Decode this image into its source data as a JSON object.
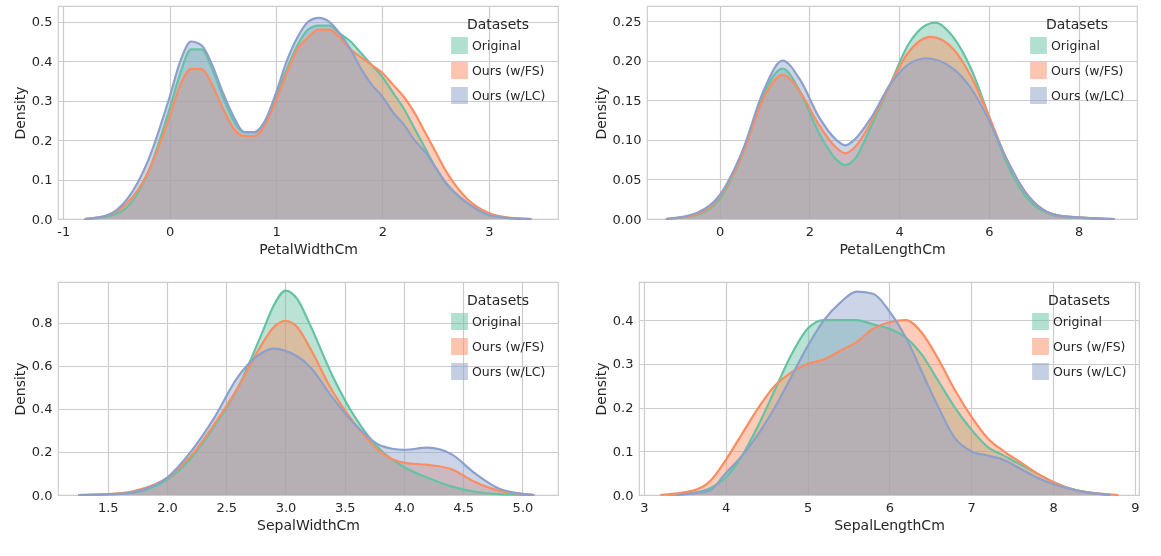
{
  "chart_data": [
    {
      "type": "area",
      "xlabel": "PetalWidthCm",
      "ylabel": "Density",
      "legend_title": "Datasets",
      "legend": "top right",
      "grid": true,
      "xlim": [
        -1.05,
        3.65
      ],
      "ylim": [
        0,
        0.54
      ],
      "xticks": [
        -1,
        0,
        1,
        2,
        3
      ],
      "yticks": [
        {
          "value": 0,
          "label": "0.0"
        },
        {
          "value": 0.1,
          "label": "0.1"
        },
        {
          "value": 0.2,
          "label": "0.2"
        },
        {
          "value": 0.3,
          "label": "0.3"
        },
        {
          "value": 0.4,
          "label": "0.4"
        },
        {
          "value": 0.5,
          "label": "0.5"
        }
      ],
      "series": [
        {
          "name": "Original",
          "color": "#66c2a5",
          "x": [
            -0.8,
            -0.6,
            -0.4,
            -0.2,
            0,
            0.1,
            0.2,
            0.3,
            0.4,
            0.5,
            0.6,
            0.7,
            0.8,
            0.9,
            1.0,
            1.1,
            1.2,
            1.3,
            1.4,
            1.5,
            1.6,
            1.7,
            1.8,
            1.9,
            2.0,
            2.1,
            2.2,
            2.3,
            2.4,
            2.5,
            2.6,
            2.8,
            3.0,
            3.2,
            3.4
          ],
          "values": [
            0,
            0.005,
            0.03,
            0.12,
            0.28,
            0.37,
            0.43,
            0.43,
            0.38,
            0.31,
            0.25,
            0.22,
            0.22,
            0.25,
            0.31,
            0.38,
            0.44,
            0.48,
            0.49,
            0.49,
            0.47,
            0.45,
            0.42,
            0.39,
            0.36,
            0.32,
            0.28,
            0.23,
            0.18,
            0.13,
            0.09,
            0.04,
            0.01,
            0.002,
            0
          ]
        },
        {
          "name": "Ours (w/FS)",
          "color": "#fc8d62",
          "x": [
            -0.8,
            -0.6,
            -0.4,
            -0.2,
            0,
            0.1,
            0.2,
            0.3,
            0.4,
            0.5,
            0.6,
            0.7,
            0.8,
            0.9,
            1.0,
            1.1,
            1.2,
            1.3,
            1.4,
            1.5,
            1.6,
            1.7,
            1.8,
            1.9,
            2.0,
            2.1,
            2.2,
            2.3,
            2.4,
            2.5,
            2.6,
            2.8,
            3.0,
            3.2,
            3.4
          ],
          "values": [
            0,
            0.008,
            0.04,
            0.12,
            0.26,
            0.34,
            0.38,
            0.38,
            0.34,
            0.28,
            0.23,
            0.21,
            0.21,
            0.24,
            0.3,
            0.37,
            0.43,
            0.46,
            0.48,
            0.48,
            0.46,
            0.43,
            0.41,
            0.39,
            0.37,
            0.34,
            0.31,
            0.27,
            0.22,
            0.17,
            0.12,
            0.05,
            0.015,
            0.003,
            0
          ]
        },
        {
          "name": "Ours (w/LC)",
          "color": "#8da0cb",
          "x": [
            -0.8,
            -0.6,
            -0.4,
            -0.2,
            0,
            0.1,
            0.2,
            0.3,
            0.4,
            0.5,
            0.6,
            0.7,
            0.8,
            0.9,
            1.0,
            1.1,
            1.2,
            1.3,
            1.4,
            1.5,
            1.6,
            1.7,
            1.8,
            1.9,
            2.0,
            2.1,
            2.2,
            2.3,
            2.4,
            2.5,
            2.6,
            2.8,
            3.0,
            3.2,
            3.4
          ],
          "values": [
            0,
            0.008,
            0.05,
            0.15,
            0.31,
            0.4,
            0.45,
            0.44,
            0.39,
            0.32,
            0.26,
            0.22,
            0.22,
            0.25,
            0.32,
            0.4,
            0.46,
            0.5,
            0.51,
            0.5,
            0.47,
            0.43,
            0.38,
            0.34,
            0.31,
            0.27,
            0.24,
            0.2,
            0.17,
            0.13,
            0.09,
            0.04,
            0.01,
            0.002,
            0
          ]
        }
      ]
    },
    {
      "type": "area",
      "xlabel": "PetalLengthCm",
      "ylabel": "Density",
      "legend_title": "Datasets",
      "legend": "top right",
      "grid": true,
      "xlim": [
        -1.62,
        9.3
      ],
      "ylim": [
        0,
        0.269
      ],
      "xticks": [
        0,
        2,
        4,
        6,
        8
      ],
      "yticks": [
        {
          "value": 0,
          "label": "0.00"
        },
        {
          "value": 0.05,
          "label": "0.05"
        },
        {
          "value": 0.1,
          "label": "0.10"
        },
        {
          "value": 0.15,
          "label": "0.15"
        },
        {
          "value": 0.2,
          "label": "0.20"
        },
        {
          "value": 0.25,
          "label": "0.25"
        }
      ],
      "series": [
        {
          "name": "Original",
          "color": "#66c2a5",
          "x": [
            -1.2,
            -0.5,
            0,
            0.5,
            1.0,
            1.4,
            1.8,
            2.2,
            2.6,
            2.8,
            3.0,
            3.4,
            3.8,
            4.2,
            4.6,
            4.8,
            5.2,
            5.6,
            6.0,
            6.4,
            6.8,
            7.2,
            7.6,
            8.8
          ],
          "values": [
            0,
            0.005,
            0.025,
            0.08,
            0.16,
            0.19,
            0.16,
            0.11,
            0.075,
            0.068,
            0.075,
            0.12,
            0.17,
            0.22,
            0.245,
            0.248,
            0.23,
            0.19,
            0.13,
            0.07,
            0.03,
            0.01,
            0.003,
            0
          ]
        },
        {
          "name": "Ours (w/FS)",
          "color": "#fc8d62",
          "x": [
            -1.2,
            -0.5,
            0,
            0.5,
            1.0,
            1.4,
            1.8,
            2.2,
            2.6,
            2.8,
            3.0,
            3.4,
            3.8,
            4.2,
            4.7,
            5.2,
            5.6,
            6.0,
            6.4,
            6.8,
            7.2,
            7.6,
            8.8
          ],
          "values": [
            0,
            0.006,
            0.028,
            0.08,
            0.155,
            0.182,
            0.16,
            0.12,
            0.09,
            0.083,
            0.09,
            0.125,
            0.17,
            0.21,
            0.23,
            0.215,
            0.18,
            0.13,
            0.075,
            0.035,
            0.012,
            0.004,
            0
          ]
        },
        {
          "name": "Ours (w/LC)",
          "color": "#8da0cb",
          "x": [
            -1.2,
            -0.5,
            0,
            0.5,
            1.0,
            1.4,
            1.8,
            2.2,
            2.6,
            2.8,
            3.0,
            3.4,
            3.8,
            4.2,
            4.6,
            5.2,
            5.6,
            6.0,
            6.4,
            6.8,
            7.2,
            7.6,
            8.8
          ],
          "values": [
            0,
            0.008,
            0.03,
            0.085,
            0.165,
            0.2,
            0.175,
            0.13,
            0.1,
            0.093,
            0.1,
            0.13,
            0.17,
            0.195,
            0.203,
            0.19,
            0.165,
            0.125,
            0.075,
            0.035,
            0.012,
            0.004,
            0
          ]
        }
      ]
    },
    {
      "type": "area",
      "xlabel": "SepalWidthCm",
      "ylabel": "Density",
      "legend_title": "Datasets",
      "legend": "top right",
      "grid": true,
      "xlim": [
        1.08,
        5.3
      ],
      "ylim": [
        0,
        0.99
      ],
      "xticks": [
        {
          "value": 1.5,
          "label": "1.5"
        },
        {
          "value": 2,
          "label": "2.0"
        },
        {
          "value": 2.5,
          "label": "2.5"
        },
        {
          "value": 3,
          "label": "3.0"
        },
        {
          "value": 3.5,
          "label": "3.5"
        },
        {
          "value": 4,
          "label": "4.0"
        },
        {
          "value": 4.5,
          "label": "4.5"
        },
        {
          "value": 5,
          "label": "5.0"
        }
      ],
      "yticks": [
        {
          "value": 0,
          "label": "0.0"
        },
        {
          "value": 0.2,
          "label": "0.2"
        },
        {
          "value": 0.4,
          "label": "0.4"
        },
        {
          "value": 0.6,
          "label": "0.6"
        },
        {
          "value": 0.8,
          "label": "0.8"
        }
      ],
      "series": [
        {
          "name": "Original",
          "color": "#66c2a5",
          "x": [
            1.25,
            1.6,
            1.8,
            2.0,
            2.2,
            2.4,
            2.6,
            2.8,
            2.9,
            3.0,
            3.1,
            3.2,
            3.4,
            3.6,
            3.8,
            4.0,
            4.2,
            4.4,
            4.6,
            4.8,
            5.1
          ],
          "values": [
            0,
            0.005,
            0.02,
            0.07,
            0.17,
            0.32,
            0.5,
            0.75,
            0.88,
            0.95,
            0.91,
            0.8,
            0.55,
            0.35,
            0.21,
            0.13,
            0.08,
            0.04,
            0.015,
            0.004,
            0
          ]
        },
        {
          "name": "Ours (w/FS)",
          "color": "#fc8d62",
          "x": [
            1.25,
            1.6,
            1.8,
            2.0,
            2.2,
            2.4,
            2.6,
            2.8,
            2.9,
            3.0,
            3.1,
            3.2,
            3.4,
            3.6,
            3.8,
            4.0,
            4.2,
            4.4,
            4.6,
            4.8,
            5.1
          ],
          "values": [
            0,
            0.008,
            0.03,
            0.08,
            0.18,
            0.33,
            0.5,
            0.7,
            0.78,
            0.81,
            0.78,
            0.69,
            0.48,
            0.32,
            0.2,
            0.15,
            0.14,
            0.12,
            0.06,
            0.02,
            0
          ]
        },
        {
          "name": "Ours (w/LC)",
          "color": "#8da0cb",
          "x": [
            1.25,
            1.6,
            1.8,
            2.0,
            2.2,
            2.4,
            2.6,
            2.8,
            2.9,
            3.0,
            3.2,
            3.4,
            3.6,
            3.8,
            4.0,
            4.2,
            4.4,
            4.6,
            4.8,
            5.0,
            5.1
          ],
          "values": [
            0,
            0.005,
            0.025,
            0.08,
            0.2,
            0.36,
            0.55,
            0.66,
            0.68,
            0.67,
            0.6,
            0.45,
            0.32,
            0.23,
            0.21,
            0.22,
            0.19,
            0.1,
            0.03,
            0.005,
            0
          ]
        }
      ]
    },
    {
      "type": "area",
      "xlabel": "SepalLengthCm",
      "ylabel": "Density",
      "legend_title": "Datasets",
      "legend": "top right",
      "grid": true,
      "xlim": [
        2.94,
        9.05
      ],
      "ylim": [
        0,
        0.487
      ],
      "xticks": [
        3,
        4,
        5,
        6,
        7,
        8,
        9
      ],
      "yticks": [
        {
          "value": 0,
          "label": "0.0"
        },
        {
          "value": 0.1,
          "label": "0.1"
        },
        {
          "value": 0.2,
          "label": "0.2"
        },
        {
          "value": 0.3,
          "label": "0.3"
        },
        {
          "value": 0.4,
          "label": "0.4"
        }
      ],
      "series": [
        {
          "name": "Original",
          "color": "#66c2a5",
          "x": [
            3.3,
            3.6,
            3.8,
            4.0,
            4.2,
            4.4,
            4.6,
            4.8,
            5.0,
            5.2,
            5.4,
            5.6,
            5.8,
            6.0,
            6.2,
            6.4,
            6.6,
            6.8,
            7.0,
            7.2,
            7.4,
            7.6,
            7.8,
            8.0,
            8.3,
            8.7
          ],
          "values": [
            0,
            0.005,
            0.015,
            0.04,
            0.09,
            0.16,
            0.24,
            0.32,
            0.38,
            0.4,
            0.4,
            0.4,
            0.39,
            0.38,
            0.36,
            0.32,
            0.26,
            0.2,
            0.15,
            0.11,
            0.09,
            0.07,
            0.05,
            0.03,
            0.01,
            0
          ]
        },
        {
          "name": "Ours (w/FS)",
          "color": "#fc8d62",
          "x": [
            3.2,
            3.6,
            3.8,
            4.0,
            4.2,
            4.4,
            4.6,
            4.8,
            5.0,
            5.2,
            5.4,
            5.6,
            5.8,
            6.0,
            6.2,
            6.4,
            6.6,
            6.8,
            7.0,
            7.2,
            7.4,
            7.6,
            7.8,
            8.0,
            8.3,
            8.8
          ],
          "values": [
            0,
            0.01,
            0.03,
            0.08,
            0.14,
            0.2,
            0.25,
            0.28,
            0.3,
            0.31,
            0.33,
            0.35,
            0.38,
            0.395,
            0.4,
            0.37,
            0.31,
            0.24,
            0.18,
            0.13,
            0.1,
            0.075,
            0.05,
            0.03,
            0.01,
            0
          ]
        },
        {
          "name": "Ours (w/LC)",
          "color": "#8da0cb",
          "x": [
            3.4,
            3.8,
            4.0,
            4.2,
            4.4,
            4.6,
            4.8,
            5.0,
            5.2,
            5.4,
            5.6,
            5.8,
            6.0,
            6.2,
            6.4,
            6.6,
            6.8,
            7.0,
            7.2,
            7.4,
            7.6,
            7.8,
            8.0,
            8.3,
            8.7
          ],
          "values": [
            0,
            0.01,
            0.05,
            0.09,
            0.14,
            0.2,
            0.27,
            0.34,
            0.4,
            0.44,
            0.465,
            0.46,
            0.42,
            0.36,
            0.28,
            0.2,
            0.13,
            0.1,
            0.09,
            0.08,
            0.06,
            0.04,
            0.025,
            0.01,
            0
          ]
        }
      ]
    }
  ]
}
